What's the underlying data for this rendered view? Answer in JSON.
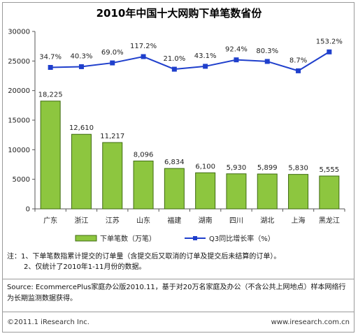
{
  "title": "2010年中国十大网购下单笔数省份",
  "chart_data": {
    "type": "bar",
    "categories": [
      "广东",
      "浙江",
      "江苏",
      "山东",
      "福建",
      "湖南",
      "四川",
      "湖北",
      "上海",
      "黑龙江"
    ],
    "series": [
      {
        "name": "下单笔数（万笔）",
        "type": "bar",
        "values": [
          18225,
          12610,
          11217,
          8096,
          6834,
          6100,
          5930,
          5899,
          5830,
          5555
        ],
        "labels": [
          "18,225",
          "12,610",
          "11,217",
          "8,096",
          "6,834",
          "6,100",
          "5,930",
          "5,899",
          "5,830",
          "5,555"
        ],
        "color": "#8dc63f"
      },
      {
        "name": "Q3同比增长率（%）",
        "type": "line",
        "values": [
          34.7,
          40.3,
          69.0,
          117.2,
          21.0,
          43.1,
          92.4,
          80.3,
          8.7,
          153.2
        ],
        "labels": [
          "34.7%",
          "40.3%",
          "69.0%",
          "117.2%",
          "21.0%",
          "43.1%",
          "92.4%",
          "80.3%",
          "8.7%",
          "153.2%"
        ],
        "color": "#1f3fcc"
      }
    ],
    "ylim": [
      0,
      30000
    ],
    "yticks": [
      "0",
      "5000",
      "10000",
      "15000",
      "20000",
      "25000",
      "30000"
    ],
    "legend_position": "bottom",
    "grid": false
  },
  "notes": {
    "line1": "注：1、下单笔数指累计提交的订单量（含提交后又取消的订单及提交后未结算的订单）。",
    "line2": "2、仅统计了2010年1-11月份的数据。"
  },
  "source": "Source: EcommercePlus家庭办公版2010.11，基于对20万名家庭及办公（不含公共上网地点）样本网络行为长期监测数据获得。",
  "footer": {
    "copyright": "©2011.1 iResearch Inc.",
    "website": "www.iresearch.com.cn"
  }
}
